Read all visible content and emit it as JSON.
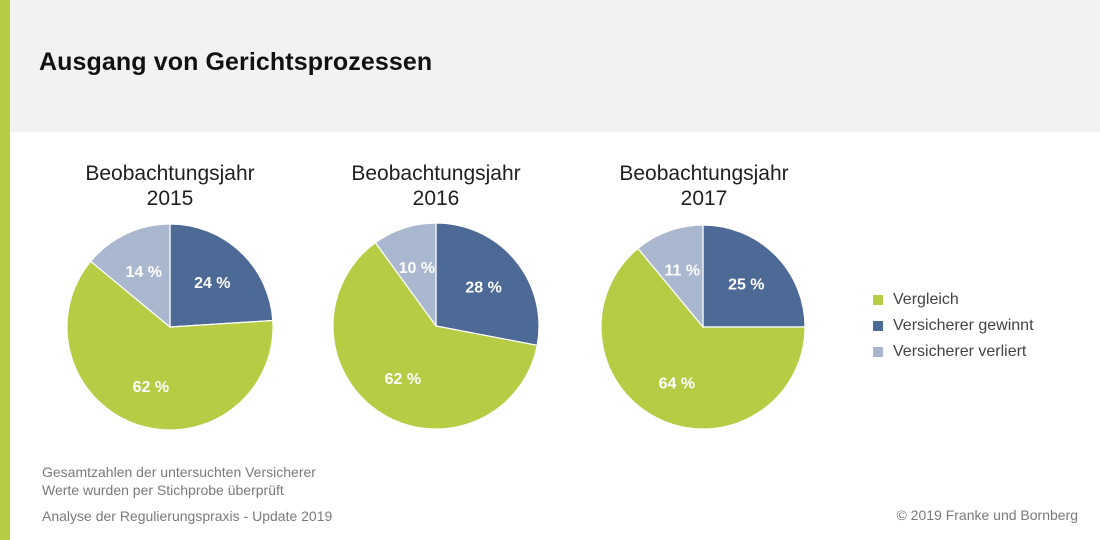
{
  "title": "Ausgang von Gerichtsprozessen",
  "chart_data": [
    {
      "type": "pie",
      "title": [
        "Beobachtungsjahr",
        "2015"
      ],
      "slices": [
        {
          "label": "Versicherer gewinnt",
          "value": 24,
          "display": "24 %"
        },
        {
          "label": "Vergleich",
          "value": 62,
          "display": "62 %"
        },
        {
          "label": "Versicherer verliert",
          "value": 14,
          "display": "14 %"
        }
      ]
    },
    {
      "type": "pie",
      "title": [
        "Beobachtungsjahr",
        "2016"
      ],
      "slices": [
        {
          "label": "Versicherer gewinnt",
          "value": 28,
          "display": "28 %"
        },
        {
          "label": "Vergleich",
          "value": 62,
          "display": "62 %"
        },
        {
          "label": "Versicherer verliert",
          "value": 10,
          "display": "10 %"
        }
      ]
    },
    {
      "type": "pie",
      "title": [
        "Beobachtungsjahr",
        "2017"
      ],
      "slices": [
        {
          "label": "Versicherer gewinnt",
          "value": 25,
          "display": "25 %"
        },
        {
          "label": "Vergleich",
          "value": 64,
          "display": "64 %"
        },
        {
          "label": "Versicherer verliert",
          "value": 11,
          "display": "11 %"
        }
      ]
    }
  ],
  "legend": [
    {
      "label": "Vergleich",
      "color": "#b5cc44"
    },
    {
      "label": "Versicherer gewinnt",
      "color": "#4d6995"
    },
    {
      "label": "Versicherer verliert",
      "color": "#a9b8ce"
    }
  ],
  "colors": {
    "Vergleich": "#b5cc44",
    "Versicherer gewinnt": "#4d6995",
    "Versicherer verliert": "#a9b8ce",
    "accent": "#b5cc44"
  },
  "footnotes": [
    "Gesamtzahlen der untersuchten Versicherer",
    "Werte wurden per Stichprobe überprüft",
    "Analyse der Regulierungspraxis - Update 2019"
  ],
  "copyright": "© 2019 Franke und Bornberg"
}
